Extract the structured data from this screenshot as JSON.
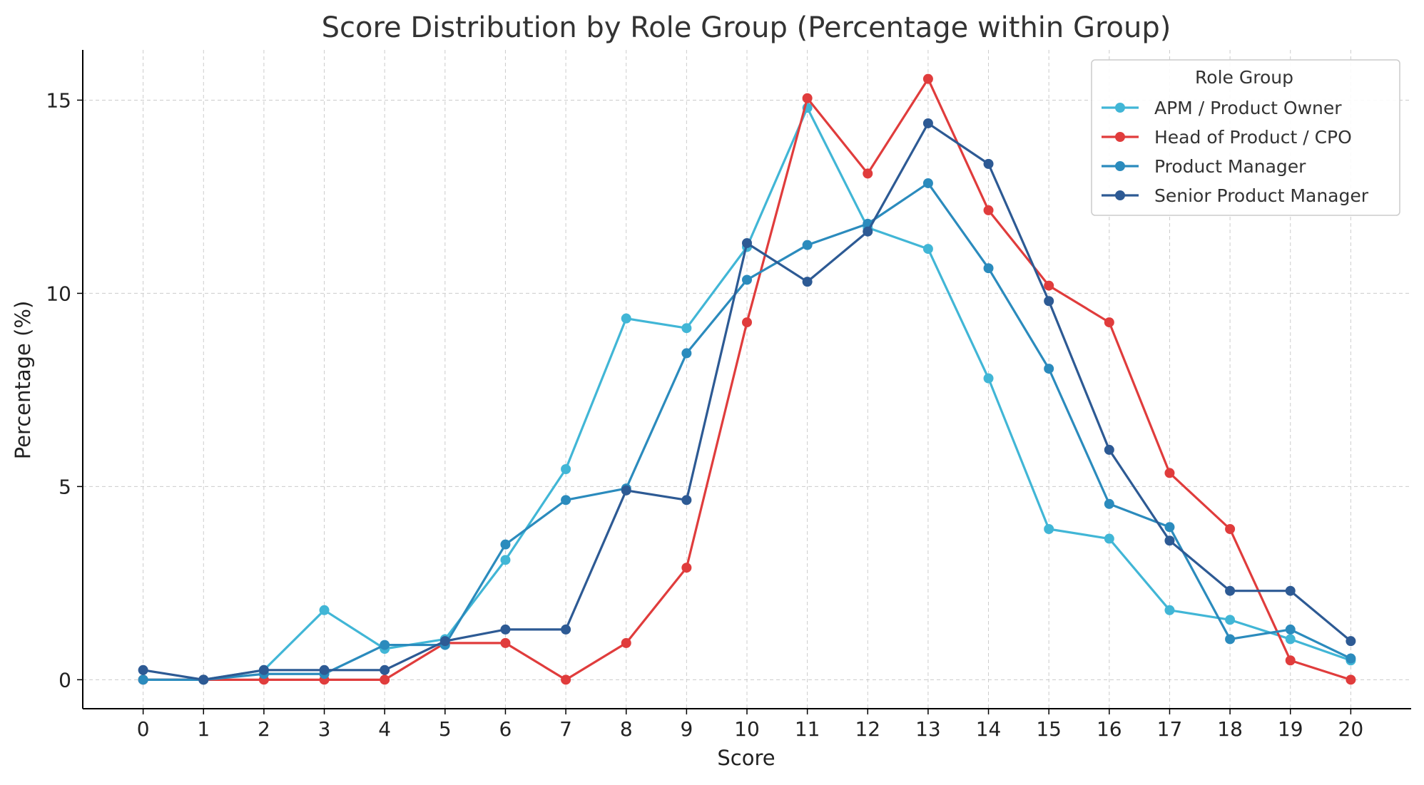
{
  "chart_data": {
    "type": "line",
    "title": "Score Distribution by Role Group (Percentage within Group)",
    "xlabel": "Score",
    "ylabel": "Percentage (%)",
    "x": [
      0,
      1,
      2,
      3,
      4,
      5,
      6,
      7,
      8,
      9,
      10,
      11,
      12,
      13,
      14,
      15,
      16,
      17,
      18,
      19,
      20
    ],
    "xticks": [
      "0",
      "1",
      "2",
      "3",
      "4",
      "5",
      "6",
      "7",
      "8",
      "9",
      "10",
      "11",
      "12",
      "13",
      "14",
      "15",
      "16",
      "17",
      "18",
      "19",
      "20"
    ],
    "xlim": [
      -1,
      21
    ],
    "ylim": [
      -0.75,
      16.3
    ],
    "yticks": [
      0,
      5,
      10,
      15
    ],
    "ytick_labels": [
      "0",
      "5",
      "10",
      "15"
    ],
    "grid": true,
    "legend": {
      "title": "Role Group",
      "placement": "top-right"
    },
    "series": [
      {
        "name": "APM / Product Owner",
        "color": "#41b6d6",
        "values": [
          0,
          0,
          0.25,
          1.8,
          0.8,
          1.05,
          3.1,
          5.45,
          9.35,
          9.1,
          11.2,
          14.8,
          11.7,
          11.15,
          7.8,
          3.9,
          3.65,
          1.8,
          1.55,
          1.05,
          0.5
        ]
      },
      {
        "name": "Head of Product / CPO",
        "color": "#e03c3c",
        "values": [
          0,
          0,
          0,
          0,
          0,
          0.95,
          0.95,
          0,
          0.95,
          2.9,
          9.25,
          15.05,
          13.1,
          15.55,
          12.15,
          10.2,
          9.25,
          5.35,
          3.9,
          0.5,
          0
        ]
      },
      {
        "name": "Product Manager",
        "color": "#2b8bbd",
        "values": [
          0,
          0,
          0.15,
          0.15,
          0.9,
          0.9,
          3.5,
          4.65,
          4.95,
          8.45,
          10.35,
          11.25,
          11.8,
          12.85,
          10.65,
          8.05,
          4.55,
          3.95,
          1.05,
          1.3,
          0.55
        ]
      },
      {
        "name": "Senior Product Manager",
        "color": "#2d5a94",
        "values": [
          0.25,
          0,
          0.25,
          0.25,
          0.25,
          1.0,
          1.3,
          1.3,
          4.9,
          4.65,
          11.3,
          10.3,
          11.6,
          14.4,
          13.35,
          9.8,
          5.95,
          3.6,
          2.3,
          2.3,
          1.0
        ]
      }
    ]
  }
}
